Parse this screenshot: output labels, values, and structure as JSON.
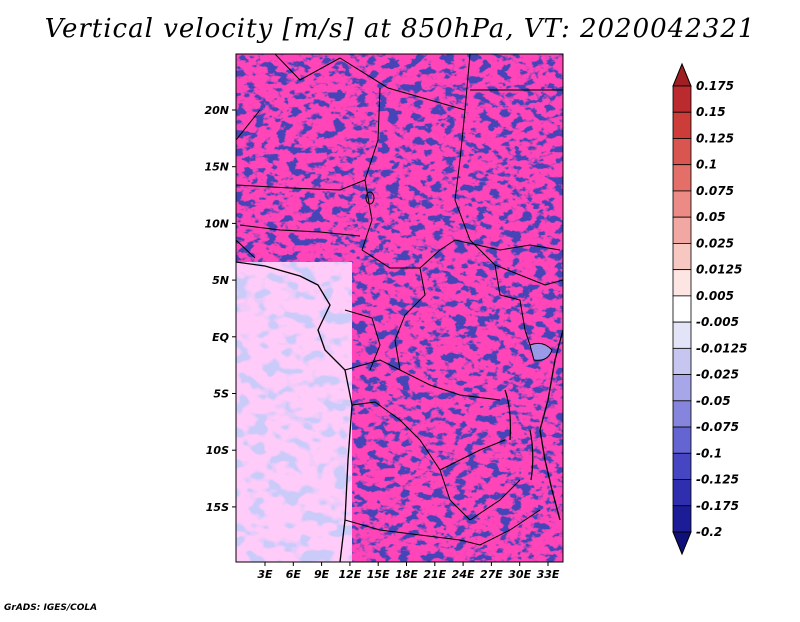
{
  "title": "Vertical velocity [m/s] at 850hPa, VT: 2020042321",
  "credit": "GrADS: IGES/COLA",
  "map": {
    "variable": "Vertical velocity",
    "units": "m/s",
    "level": "850hPa",
    "valid_time": "2020042321",
    "lon_labels": [
      "3E",
      "6E",
      "9E",
      "12E",
      "15E",
      "18E",
      "21E",
      "24E",
      "27E",
      "30E",
      "33E"
    ],
    "lat_labels": [
      "20N",
      "15N",
      "10N",
      "5N",
      "EQ",
      "5S",
      "10S",
      "15S"
    ]
  },
  "colorbar": {
    "labels": [
      "0.175",
      "0.15",
      "0.125",
      "0.1",
      "0.075",
      "0.05",
      "0.025",
      "0.0125",
      "0.005",
      "-0.005",
      "-0.0125",
      "-0.025",
      "-0.05",
      "-0.075",
      "-0.1",
      "-0.125",
      "-0.175",
      "-0.2"
    ],
    "colors": [
      "#a01f23",
      "#bb2a2e",
      "#cc3d3a",
      "#d95550",
      "#e46f68",
      "#ec8b85",
      "#f2a8a2",
      "#f7c7c2",
      "#fce5e2",
      "#ffffff",
      "#e4e4f8",
      "#c6c6f0",
      "#a6a6e8",
      "#8585de",
      "#6464d2",
      "#4646c2",
      "#2e2eae",
      "#1c1c96",
      "#0f0f7a"
    ]
  }
}
